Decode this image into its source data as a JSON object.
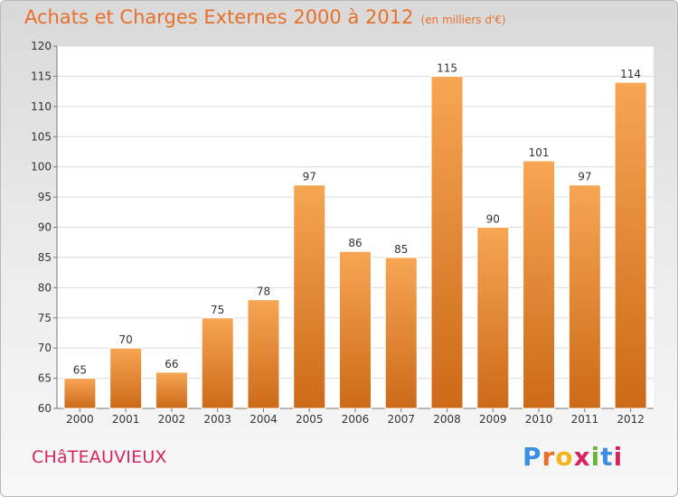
{
  "title": "Achats et Charges Externes 2000 à 2012",
  "title_unit": "(en milliers d'€)",
  "commune": "CHâTEAUVIEUX",
  "logo": {
    "letters": [
      "P",
      "r",
      "o",
      "x",
      "i",
      "t",
      "i"
    ],
    "colors": [
      "#3b8ee0",
      "#e8702a",
      "#f2b31b",
      "#d7265d",
      "#6cb33f",
      "#3b8ee0",
      "#d7265d"
    ]
  },
  "colors": {
    "bar_top": "#f7a654",
    "bar_bottom": "#cc6a18",
    "accent": "#e8702a",
    "commune": "#d7265d"
  },
  "chart_data": {
    "type": "bar",
    "categories": [
      "2000",
      "2001",
      "2002",
      "2003",
      "2004",
      "2005",
      "2006",
      "2007",
      "2008",
      "2009",
      "2010",
      "2011",
      "2012"
    ],
    "values": [
      65,
      70,
      66,
      75,
      78,
      97,
      86,
      85,
      115,
      90,
      101,
      97,
      114
    ],
    "ylim": [
      60,
      120
    ],
    "yticks": [
      60,
      65,
      70,
      75,
      80,
      85,
      90,
      95,
      100,
      105,
      110,
      115,
      120
    ],
    "grid": true
  }
}
